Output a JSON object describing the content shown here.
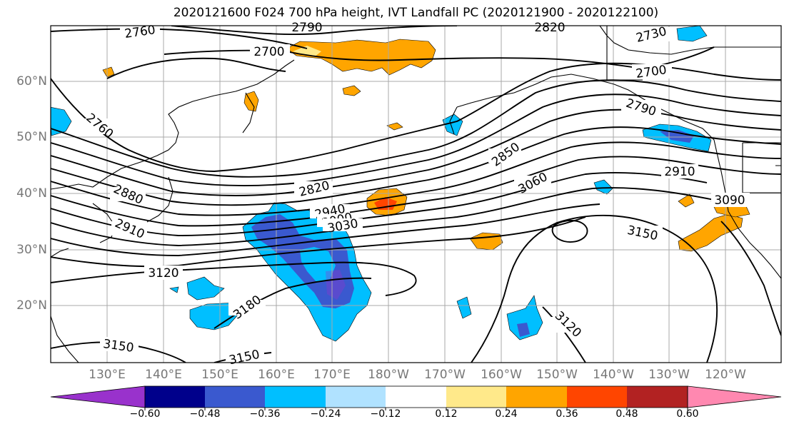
{
  "title": "2020121600 F024 700 hPa height, IVT Landfall PC (2020121900 - 2020122100)",
  "lat_labels": [
    "60°N",
    "50°N",
    "40°N",
    "30°N",
    "20°N"
  ],
  "lon_labels": [
    "130°E",
    "140°E",
    "150°E",
    "160°E",
    "170°E",
    "180°W",
    "170°W",
    "160°W",
    "150°W",
    "140°W",
    "130°W",
    "120°W"
  ],
  "contour_labels": [
    "2760",
    "2790",
    "2820",
    "2700",
    "2730",
    "2700",
    "2760",
    "2790",
    "2850",
    "2910",
    "2820",
    "2940",
    "3000",
    "3030",
    "3060",
    "2880",
    "2910",
    "3120",
    "3150",
    "3090",
    "3180",
    "3150",
    "3120",
    "3150"
  ],
  "colorbar": {
    "ticks": [
      "−0.60",
      "−0.48",
      "−0.36",
      "−0.24",
      "−0.12",
      "0.12",
      "0.24",
      "0.36",
      "0.48",
      "0.60"
    ],
    "colors": [
      "#9932cc",
      "#00008b",
      "#3a59cf",
      "#00bfff",
      "#b0e2ff",
      "#ffffff",
      "#ffe98a",
      "#ffa500",
      "#ff4500",
      "#b22222",
      "#ff88b0"
    ]
  }
}
